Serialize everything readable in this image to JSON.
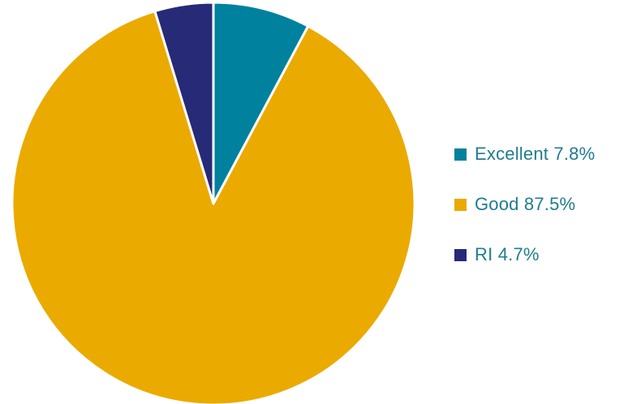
{
  "chart_data": {
    "type": "pie",
    "title": "",
    "legend_position": "right",
    "slices": [
      {
        "label": "Excellent 7.8%",
        "category": "Excellent",
        "value": 7.8,
        "color": "#00819e"
      },
      {
        "label": "Good 87.5%",
        "category": "Good",
        "value": 87.5,
        "color": "#eaaa00"
      },
      {
        "label": "RI 4.7%",
        "category": "RI",
        "value": 4.7,
        "color": "#262a77"
      }
    ]
  },
  "colors": {
    "legend_text": "#1f7c8f",
    "slice_border": "#ffffff"
  }
}
